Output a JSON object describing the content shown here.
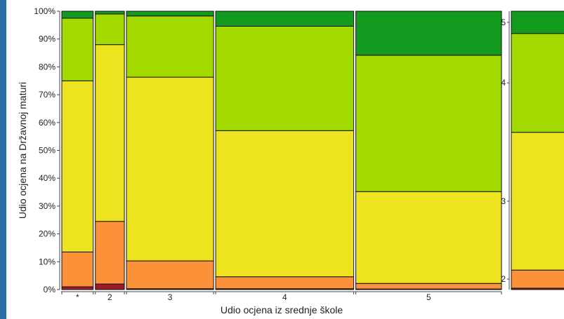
{
  "chart_data": [
    {
      "type": "mosaic",
      "xlabel": "Udio ocjena iz srednje škole",
      "ylabel": "Udio ocjena na Državnoj maturi",
      "y_ticks": [
        "0%",
        "10%",
        "20%",
        "30%",
        "40%",
        "50%",
        "60%",
        "70%",
        "80%",
        "90%",
        "100%"
      ],
      "ylim": [
        0,
        100
      ],
      "grid": false,
      "legend": "none",
      "categories": [
        "*",
        "2",
        "3",
        "4",
        "5"
      ],
      "category_widths": [
        0.066,
        0.061,
        0.183,
        0.29,
        0.306
      ],
      "levels": [
        "1",
        "2",
        "3",
        "4",
        "5"
      ],
      "level_colors": [
        "#a0182a",
        "#fb9138",
        "#ede41f",
        "#a3da00",
        "#129b1e"
      ],
      "columns": [
        {
          "category": "*",
          "values": [
            1,
            12.5,
            61.5,
            22.5,
            2.5
          ]
        },
        {
          "category": "2",
          "values": [
            2,
            22.5,
            63.5,
            11,
            1
          ]
        },
        {
          "category": "3",
          "values": [
            0.3,
            10,
            66,
            22,
            1.7
          ]
        },
        {
          "category": "4",
          "values": [
            0.3,
            4.3,
            52.5,
            37.5,
            5.4
          ]
        },
        {
          "category": "5",
          "values": [
            0.2,
            2,
            33,
            49,
            15.8
          ]
        }
      ]
    },
    {
      "type": "mosaic",
      "partial": true,
      "y_ticks": [
        "2",
        "3",
        "4",
        "5"
      ],
      "levels": [
        "1",
        "2",
        "3",
        "4",
        "5"
      ],
      "level_colors": [
        "#a0182a",
        "#fb9138",
        "#ede41f",
        "#a3da00",
        "#129b1e"
      ],
      "columns": [
        {
          "category": "",
          "values": [
            0.5,
            6.5,
            49.5,
            35.5,
            8
          ]
        }
      ]
    }
  ]
}
